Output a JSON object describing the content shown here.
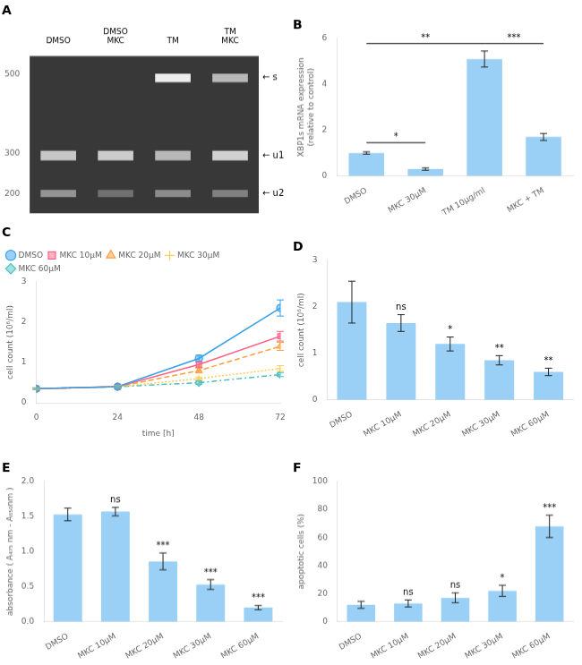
{
  "chart_data": [
    {
      "type": "gel",
      "title": "A",
      "categories": [
        "DMSO",
        "DMSO\nMKC",
        "TM",
        "TM\nMKC"
      ],
      "series": [
        {
          "values": [
            null,
            null,
            490,
            490
          ],
          "band_height": 22,
          "intensities": [
            null,
            null,
            0.93,
            0.72
          ]
        },
        {
          "values": [
            295,
            295,
            295,
            295
          ],
          "band_height": 24,
          "intensities": [
            0.78,
            0.8,
            0.72,
            0.82
          ]
        },
        {
          "values": [
            200,
            200,
            200,
            200
          ],
          "band_height": 18,
          "intensities": [
            0.58,
            0.44,
            0.55,
            0.5
          ]
        }
      ],
      "annotations": [
        {
          "text": "← s",
          "y": 490
        },
        {
          "text": "← u1",
          "y": 295
        },
        {
          "text": "← u2",
          "y": 200
        }
      ],
      "ylim": [
        150,
        545
      ],
      "yticks": [
        200,
        300,
        500
      ],
      "grid": false
    },
    {
      "type": "bar",
      "title": "B",
      "categories": [
        "DMSO",
        "MKC 30μM",
        "TM 10μg/ml",
        "MKC + TM"
      ],
      "values": [
        1.0,
        0.3,
        5.1,
        1.7
      ],
      "errors": [
        0.05,
        0.05,
        0.35,
        0.15
      ],
      "ylabel": "XBP1s mRNA expression\n(relative to control)",
      "ylim": [
        0,
        6
      ],
      "yticks": [
        0,
        2,
        4,
        6
      ],
      "brackets": [
        {
          "from": "DMSO",
          "to": "MKC 30μM",
          "y": 1.45,
          "label": "*"
        },
        {
          "from": "DMSO",
          "to": "TM 10μg/ml",
          "y": 5.78,
          "label": "**"
        },
        {
          "from": "TM 10μg/ml",
          "to": "MKC + TM",
          "y": 5.78,
          "label": "***"
        }
      ],
      "grid": false
    },
    {
      "type": "line",
      "title": "C",
      "xlabel": "time [h]",
      "ylabel": "cell count (10⁶/ml)",
      "xlim": [
        0,
        72
      ],
      "xticks": [
        0,
        24,
        48,
        72
      ],
      "ylim": [
        0,
        3
      ],
      "yticks": [
        0,
        1,
        2,
        3
      ],
      "series": [
        {
          "name": "DMSO",
          "x": [
            0,
            24,
            48,
            72
          ],
          "values": [
            0.35,
            0.4,
            1.1,
            2.35
          ],
          "errors": [
            0.02,
            0.03,
            0.08,
            0.2
          ],
          "line_style": "solid",
          "marker": "circle"
        },
        {
          "name": "MKC 10μM",
          "x": [
            0,
            24,
            48,
            72
          ],
          "values": [
            0.35,
            0.4,
            0.95,
            1.65
          ],
          "errors": [
            0.02,
            0.03,
            0.07,
            0.12
          ],
          "line_style": "solid",
          "marker": "square"
        },
        {
          "name": "MKC 20μM",
          "x": [
            0,
            24,
            48,
            72
          ],
          "values": [
            0.35,
            0.4,
            0.8,
            1.4
          ],
          "errors": [
            0.02,
            0.03,
            0.06,
            0.1
          ],
          "line_style": "dashed",
          "marker": "triangle"
        },
        {
          "name": "MKC 30μM",
          "x": [
            0,
            24,
            48,
            72
          ],
          "values": [
            0.35,
            0.4,
            0.6,
            0.85
          ],
          "errors": [
            0.02,
            0.03,
            0.04,
            0.07
          ],
          "line_style": "dotted",
          "marker": "plus"
        },
        {
          "name": "MKC 60μM",
          "x": [
            0,
            24,
            48,
            72
          ],
          "values": [
            0.35,
            0.4,
            0.5,
            0.7
          ],
          "errors": [
            0.02,
            0.03,
            0.04,
            0.05
          ],
          "line_style": "dashdot",
          "marker": "diamond"
        }
      ],
      "legend": "upper left",
      "grid": false
    },
    {
      "type": "bar",
      "title": "D",
      "categories": [
        "DMSO",
        "MKC 10μM",
        "MKC 20μM",
        "MKC 30μM",
        "MKC 60μM"
      ],
      "values": [
        2.1,
        1.65,
        1.2,
        0.85,
        0.6
      ],
      "errors": [
        0.45,
        0.18,
        0.15,
        0.1,
        0.08
      ],
      "sig_labels": [
        null,
        "ns",
        "*",
        "**",
        "**"
      ],
      "ylabel": "cell count (10⁶/ml)",
      "ylim": [
        0,
        3
      ],
      "yticks": [
        0,
        1,
        2,
        3
      ],
      "grid": false
    },
    {
      "type": "bar",
      "title": "E",
      "categories": [
        "DMSO",
        "MKC 10μM",
        "MKC 20μM",
        "MKC 30μM",
        "MKC 60μM"
      ],
      "values": [
        1.53,
        1.57,
        0.86,
        0.53,
        0.2
      ],
      "errors": [
        0.09,
        0.06,
        0.12,
        0.07,
        0.03
      ],
      "sig_labels": [
        null,
        "ns",
        "***",
        "***",
        "***"
      ],
      "ylabel": "absorbance ( A₄₇₅ nm - A₆₅₀nm )",
      "ylim": [
        0,
        2.0
      ],
      "yticks": [
        {
          "value": 0,
          "label": "0.0"
        },
        0.5,
        {
          "value": 1,
          "label": "1.0"
        },
        1.5,
        {
          "value": 2,
          "label": "2.0"
        }
      ],
      "grid": false
    },
    {
      "type": "bar",
      "title": "F",
      "categories": [
        "DMSO",
        "MKC 10μM",
        "MKC 20μM",
        "MKC 30μM",
        "MKC 60μM"
      ],
      "values": [
        12,
        13,
        17,
        22,
        68
      ],
      "errors": [
        2.5,
        2.5,
        3.5,
        4.0,
        8.0
      ],
      "sig_labels": [
        null,
        "ns",
        "ns",
        "*",
        "***"
      ],
      "ylabel": "apoptotic cells (%)",
      "ylim": [
        0,
        100
      ],
      "yticks": [
        0,
        20,
        40,
        60,
        80,
        100
      ],
      "grid": false
    }
  ]
}
